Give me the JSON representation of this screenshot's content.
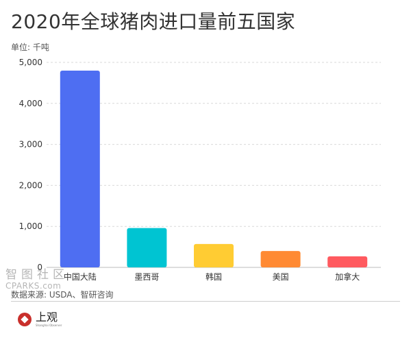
{
  "header": {
    "title": "2020年全球猪肉进口量前五国家",
    "unit": "单位: 千吨"
  },
  "footer": {
    "source": "数据来源: USDA、智研咨询",
    "logo_main": "上观",
    "logo_sub": "Shanghai Observer",
    "logo_color": "#c9302c"
  },
  "watermark": {
    "cn": "智图社区",
    "en": "CPARKS.com"
  },
  "chart_data": {
    "type": "bar",
    "title": "2020年全球猪肉进口量前五国家",
    "xlabel": "",
    "ylabel": "",
    "unit": "单位: 千吨",
    "categories": [
      "中国大陆",
      "墨西哥",
      "韩国",
      "美国",
      "加拿大"
    ],
    "values": [
      4800,
      960,
      570,
      400,
      270
    ],
    "colors": [
      "#4e6ef2",
      "#00c4d2",
      "#ffcc33",
      "#ff8a33",
      "#ff5a5f"
    ],
    "ylim": [
      0,
      5000
    ],
    "yticks": [
      0,
      1000,
      2000,
      3000,
      4000,
      5000
    ],
    "ytick_labels": [
      "0",
      "1,000",
      "2,000",
      "3,000",
      "4,000",
      "5,000"
    ],
    "grid": true,
    "grid_style": "dashed",
    "legend": "none"
  }
}
